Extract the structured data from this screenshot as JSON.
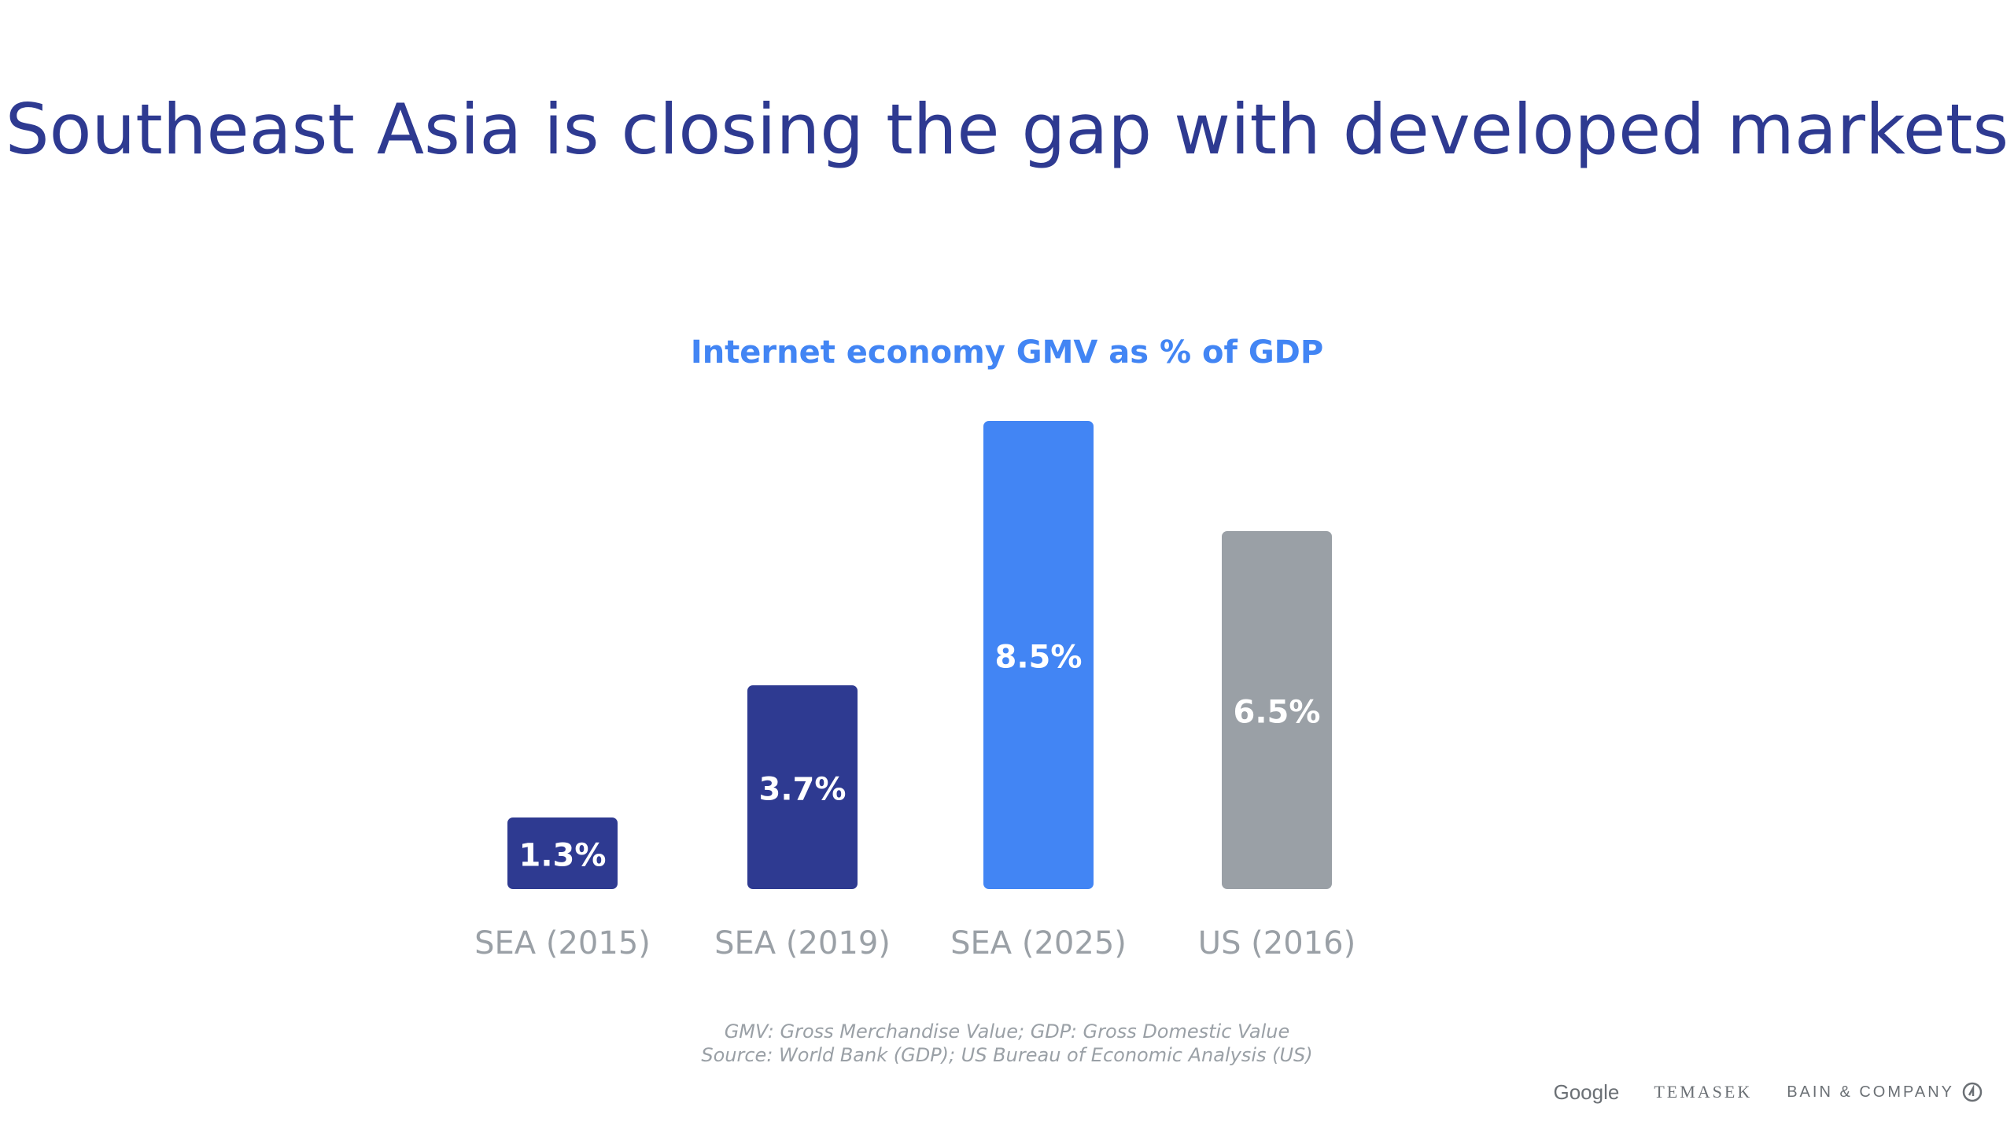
{
  "slide": {
    "title": "Southeast Asia is closing the gap with developed markets",
    "footnote_1": "GMV: Gross Merchandise Value; GDP: Gross Domestic Value",
    "footnote_2": "Source: World Bank (GDP); US Bureau of Economic Analysis (US)"
  },
  "logos": {
    "google": "Google",
    "temasek": "TEMASEK",
    "bain": "BAIN & COMPANY"
  },
  "colors": {
    "title": "#2e3a91",
    "subtitle": "#4285f4",
    "axis_label": "#9aa0a6"
  },
  "chart_data": {
    "type": "bar",
    "title": "Internet economy GMV as % of GDP",
    "categories": [
      "SEA (2015)",
      "SEA (2019)",
      "SEA (2025)",
      "US (2016)"
    ],
    "values": [
      1.3,
      3.7,
      8.5,
      6.5
    ],
    "data_labels": [
      "1.3%",
      "3.7%",
      "8.5%",
      "6.5%"
    ],
    "bar_colors": [
      "#2e3a91",
      "#2e3a91",
      "#4285f4",
      "#9aa0a6"
    ],
    "xlabel": "",
    "ylabel": "",
    "ylim": [
      0,
      8.5
    ],
    "grid": false,
    "legend": "none"
  }
}
